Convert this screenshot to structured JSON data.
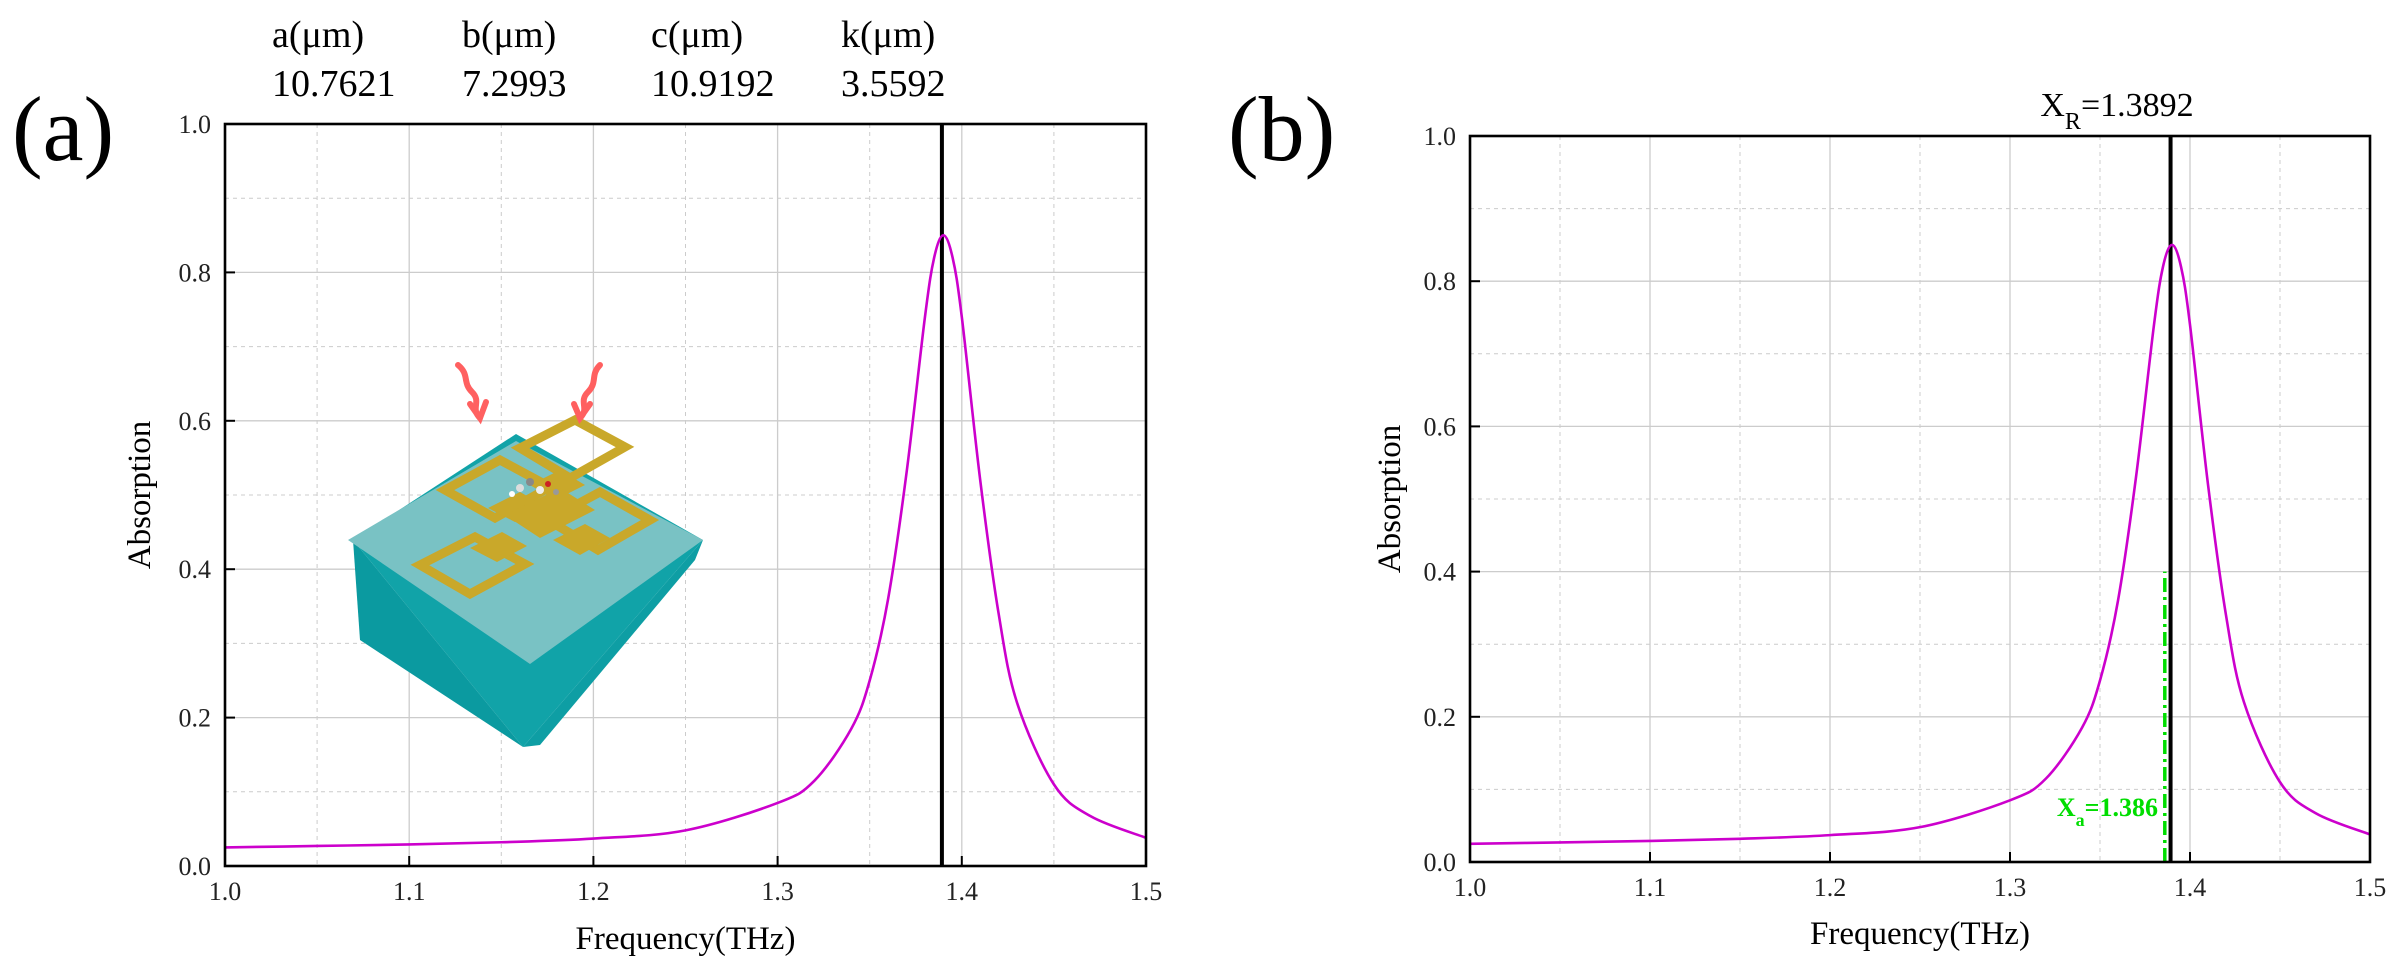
{
  "figure": {
    "params_header": [
      {
        "name": "a(μm)",
        "value": "10.7621"
      },
      {
        "name": "b(μm)",
        "value": "7.2993"
      },
      {
        "name": "c(μm)",
        "value": "10.9192"
      },
      {
        "name": "k(μm)",
        "value": "3.5592"
      }
    ],
    "annotation_b": {
      "main": "X",
      "sub": "R",
      "rest": "=1.3892"
    },
    "annotation_b_green": {
      "main": "X",
      "sub": "a",
      "rest": "=1.386"
    },
    "colors": {
      "curve": "#cc00cc",
      "marker": "#000000",
      "green": "#00dd00",
      "grid": "#cccccc",
      "substrate_top": "#79c2c4",
      "substrate_side": "#11a3a8",
      "gold": "#c9a82a",
      "wave": "#ff6060"
    },
    "icons": [
      "metasurface-unit-cell-illustration",
      "incident-wave-icon"
    ]
  },
  "chart_data": [
    {
      "panel": "(a)",
      "type": "line",
      "title": "",
      "xlabel": "Frequency(THz)",
      "ylabel": "Absorption",
      "xlim": [
        1.0,
        1.5
      ],
      "ylim": [
        0.0,
        1.0
      ],
      "xticks": [
        1.0,
        1.1,
        1.2,
        1.3,
        1.4,
        1.5
      ],
      "xtick_labels": [
        "1.0",
        "1.1",
        "1.2",
        "1.3",
        "1.4",
        "1.5"
      ],
      "yticks": [
        0.0,
        0.2,
        0.4,
        0.6,
        0.8,
        1.0
      ],
      "ytick_labels": [
        "0.0",
        "0.2",
        "0.4",
        "0.6",
        "0.8",
        "1.0"
      ],
      "grid": true,
      "series": [
        {
          "name": "Absorption",
          "x": [
            1.0,
            1.05,
            1.1,
            1.15,
            1.2,
            1.25,
            1.3,
            1.32,
            1.34,
            1.35,
            1.36,
            1.37,
            1.38,
            1.385,
            1.39,
            1.395,
            1.4,
            1.41,
            1.42,
            1.43,
            1.45,
            1.47,
            1.5
          ],
          "y": [
            0.025,
            0.027,
            0.029,
            0.032,
            0.037,
            0.048,
            0.085,
            0.115,
            0.185,
            0.25,
            0.36,
            0.53,
            0.74,
            0.82,
            0.85,
            0.82,
            0.74,
            0.52,
            0.34,
            0.22,
            0.11,
            0.067,
            0.038
          ]
        }
      ],
      "vlines": [
        {
          "x": 1.3892,
          "color": "#000000",
          "style": "solid",
          "ymax": 1.0
        }
      ]
    },
    {
      "panel": "(b)",
      "type": "line",
      "title": "",
      "xlabel": "Frequency(THz)",
      "ylabel": "Absorption",
      "xlim": [
        1.0,
        1.5
      ],
      "ylim": [
        0.0,
        1.0
      ],
      "xticks": [
        1.0,
        1.1,
        1.2,
        1.3,
        1.4,
        1.5
      ],
      "xtick_labels": [
        "1.0",
        "1.1",
        "1.2",
        "1.3",
        "1.4",
        "1.5"
      ],
      "yticks": [
        0.0,
        0.2,
        0.4,
        0.6,
        0.8,
        1.0
      ],
      "ytick_labels": [
        "0.0",
        "0.2",
        "0.4",
        "0.6",
        "0.8",
        "1.0"
      ],
      "grid": true,
      "series": [
        {
          "name": "Absorption",
          "x": [
            1.0,
            1.05,
            1.1,
            1.15,
            1.2,
            1.25,
            1.3,
            1.32,
            1.34,
            1.35,
            1.36,
            1.37,
            1.38,
            1.385,
            1.39,
            1.395,
            1.4,
            1.41,
            1.42,
            1.43,
            1.45,
            1.47,
            1.5
          ],
          "y": [
            0.025,
            0.027,
            0.029,
            0.032,
            0.037,
            0.048,
            0.085,
            0.115,
            0.185,
            0.25,
            0.36,
            0.53,
            0.74,
            0.82,
            0.85,
            0.82,
            0.74,
            0.52,
            0.34,
            0.22,
            0.11,
            0.067,
            0.038
          ]
        }
      ],
      "vlines": [
        {
          "x": 1.3892,
          "color": "#000000",
          "style": "solid",
          "ymax": 1.0
        },
        {
          "x": 1.386,
          "color": "#00dd00",
          "style": "dashdot",
          "ymax": 0.4
        }
      ]
    }
  ]
}
